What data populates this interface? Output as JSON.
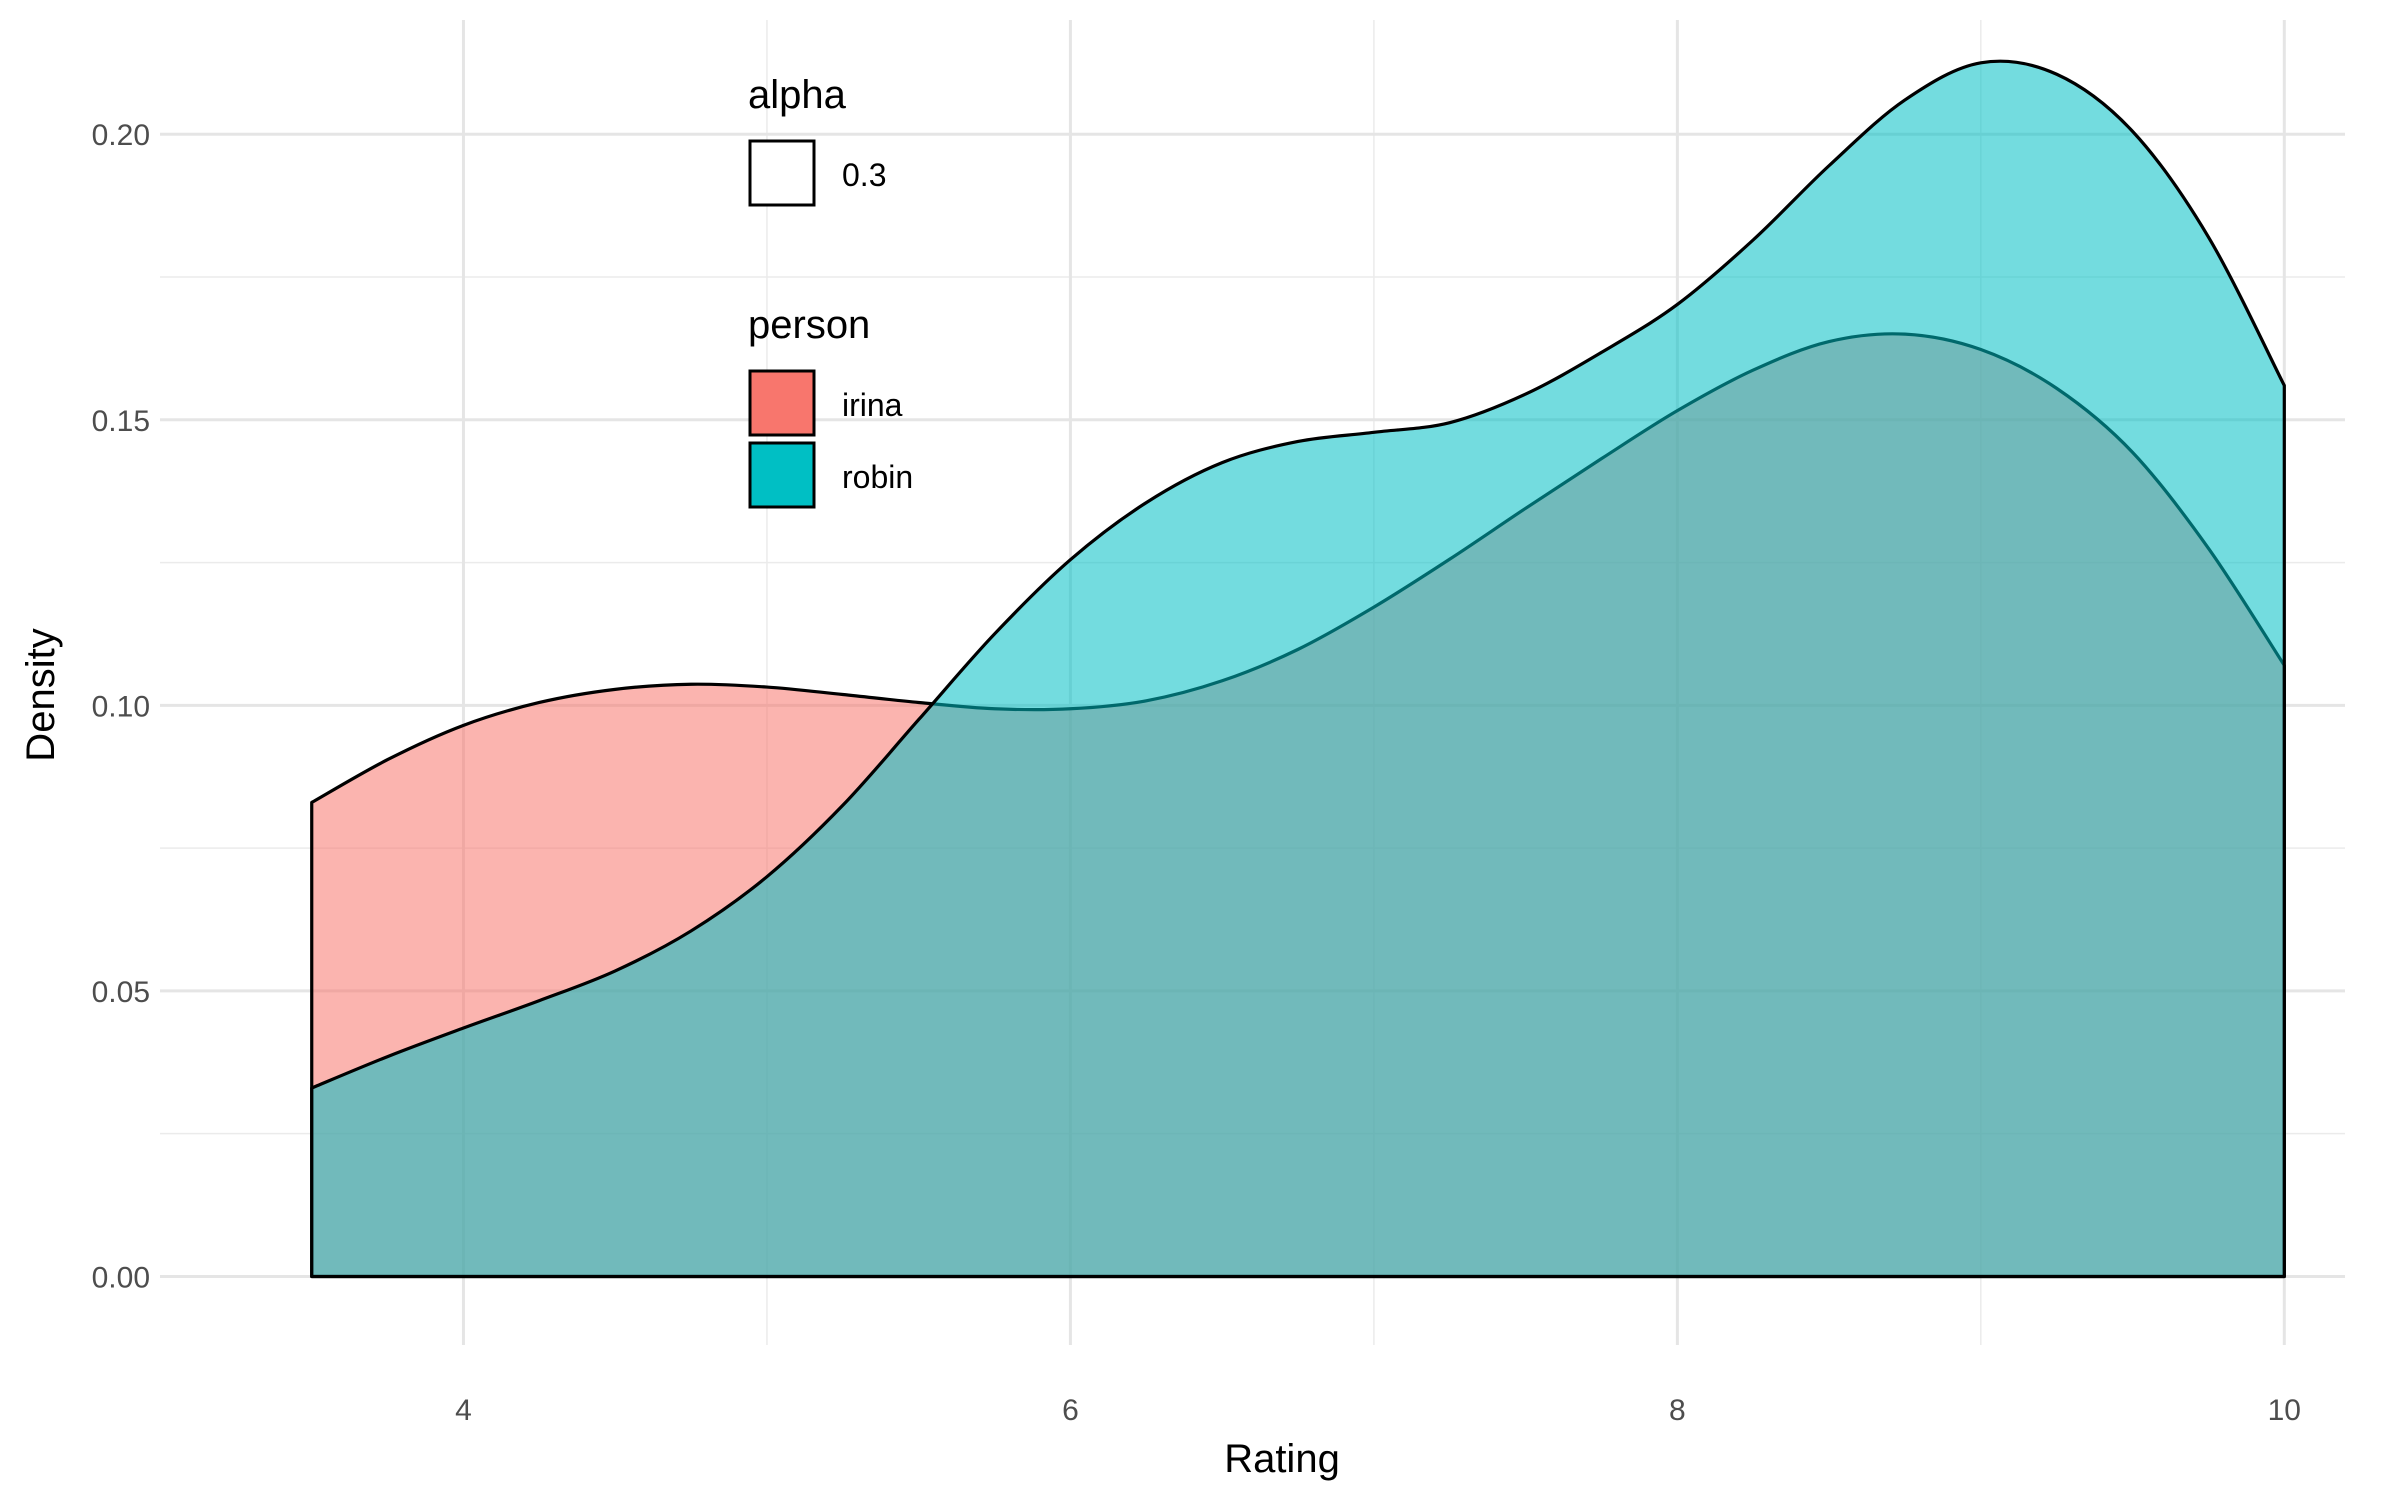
{
  "chart_data": {
    "type": "area",
    "subtype": "density",
    "title": "",
    "xlabel": "Rating",
    "ylabel": "Density",
    "xlim": [
      3.0,
      10.2
    ],
    "ylim": [
      -0.012,
      0.22
    ],
    "x_ticks": [
      4,
      6,
      8,
      10
    ],
    "x_minor_ticks": [
      5,
      7,
      9
    ],
    "y_ticks": [
      0.0,
      0.05,
      0.1,
      0.15,
      0.2
    ],
    "y_tick_labels": [
      "0.00",
      "0.05",
      "0.10",
      "0.15",
      "0.20"
    ],
    "y_minor_ticks": [
      0.025,
      0.075,
      0.125,
      0.175
    ],
    "grid": true,
    "fill_opacity": 0.55,
    "legend": {
      "placement": "top-left inside plot",
      "alpha": {
        "title": "alpha",
        "label": "0.3"
      },
      "person": {
        "title": "person"
      }
    },
    "series": [
      {
        "name": "irina",
        "color": "#F8766D",
        "x": [
          3.5,
          3.75,
          4.0,
          4.25,
          4.5,
          4.75,
          5.0,
          5.25,
          5.5,
          5.75,
          6.0,
          6.25,
          6.5,
          6.75,
          7.0,
          7.25,
          7.5,
          7.75,
          8.0,
          8.25,
          8.5,
          8.75,
          9.0,
          9.25,
          9.5,
          9.75,
          10.0
        ],
        "y": [
          0.083,
          0.0905,
          0.0965,
          0.1005,
          0.1028,
          0.1037,
          0.1032,
          0.1019,
          0.1005,
          0.0994,
          0.0994,
          0.1008,
          0.1043,
          0.1098,
          0.1172,
          0.1256,
          0.1345,
          0.1432,
          0.1516,
          0.1587,
          0.1637,
          0.165,
          0.1623,
          0.1555,
          0.1443,
          0.1275,
          0.107
        ]
      },
      {
        "name": "robin",
        "color": "#00BFC4",
        "x": [
          3.5,
          3.75,
          4.0,
          4.25,
          4.5,
          4.75,
          5.0,
          5.25,
          5.5,
          5.75,
          6.0,
          6.25,
          6.5,
          6.75,
          7.0,
          7.25,
          7.5,
          7.75,
          8.0,
          8.25,
          8.5,
          8.75,
          9.0,
          9.25,
          9.5,
          9.75,
          10.0
        ],
        "y": [
          0.033,
          0.0385,
          0.0435,
          0.0483,
          0.0535,
          0.0605,
          0.07,
          0.0825,
          0.0975,
          0.1125,
          0.1255,
          0.1355,
          0.1425,
          0.1462,
          0.1478,
          0.1495,
          0.1545,
          0.1618,
          0.1702,
          0.1815,
          0.1945,
          0.206,
          0.2125,
          0.2105,
          0.2005,
          0.182,
          0.156
        ]
      }
    ]
  }
}
